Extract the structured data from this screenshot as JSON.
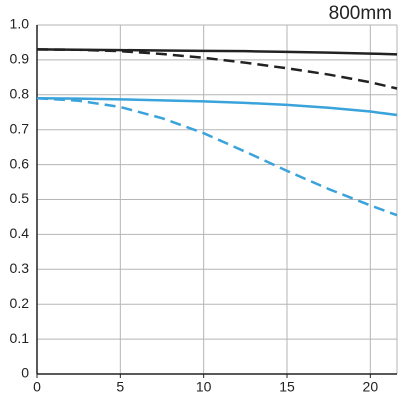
{
  "chart_data": {
    "type": "line",
    "title": "800mm",
    "x": [
      0,
      2.5,
      5,
      7.5,
      10,
      12.5,
      15,
      17.5,
      20,
      21.6
    ],
    "series": [
      {
        "color": "#222222",
        "dash": false,
        "values": [
          0.93,
          0.929,
          0.928,
          0.927,
          0.926,
          0.925,
          0.923,
          0.921,
          0.918,
          0.916
        ]
      },
      {
        "color": "#222222",
        "dash": true,
        "values": [
          0.93,
          0.929,
          0.925,
          0.917,
          0.906,
          0.892,
          0.876,
          0.858,
          0.836,
          0.818
        ]
      },
      {
        "color": "#3aa3db",
        "dash": false,
        "values": [
          0.79,
          0.789,
          0.787,
          0.784,
          0.781,
          0.777,
          0.771,
          0.763,
          0.752,
          0.742
        ]
      },
      {
        "color": "#3aa3db",
        "dash": true,
        "values": [
          0.79,
          0.783,
          0.765,
          0.733,
          0.69,
          0.637,
          0.582,
          0.53,
          0.483,
          0.455
        ]
      }
    ],
    "xlim": [
      0,
      21.6
    ],
    "ylim": [
      0,
      1
    ],
    "xticks": [
      0,
      5,
      10,
      15,
      20
    ],
    "yticks": [
      0,
      0.1,
      0.2,
      0.3,
      0.4,
      0.5,
      0.6,
      0.7,
      0.8,
      0.9,
      {
        "value": 1,
        "label": "1.0"
      }
    ],
    "grid": true
  }
}
